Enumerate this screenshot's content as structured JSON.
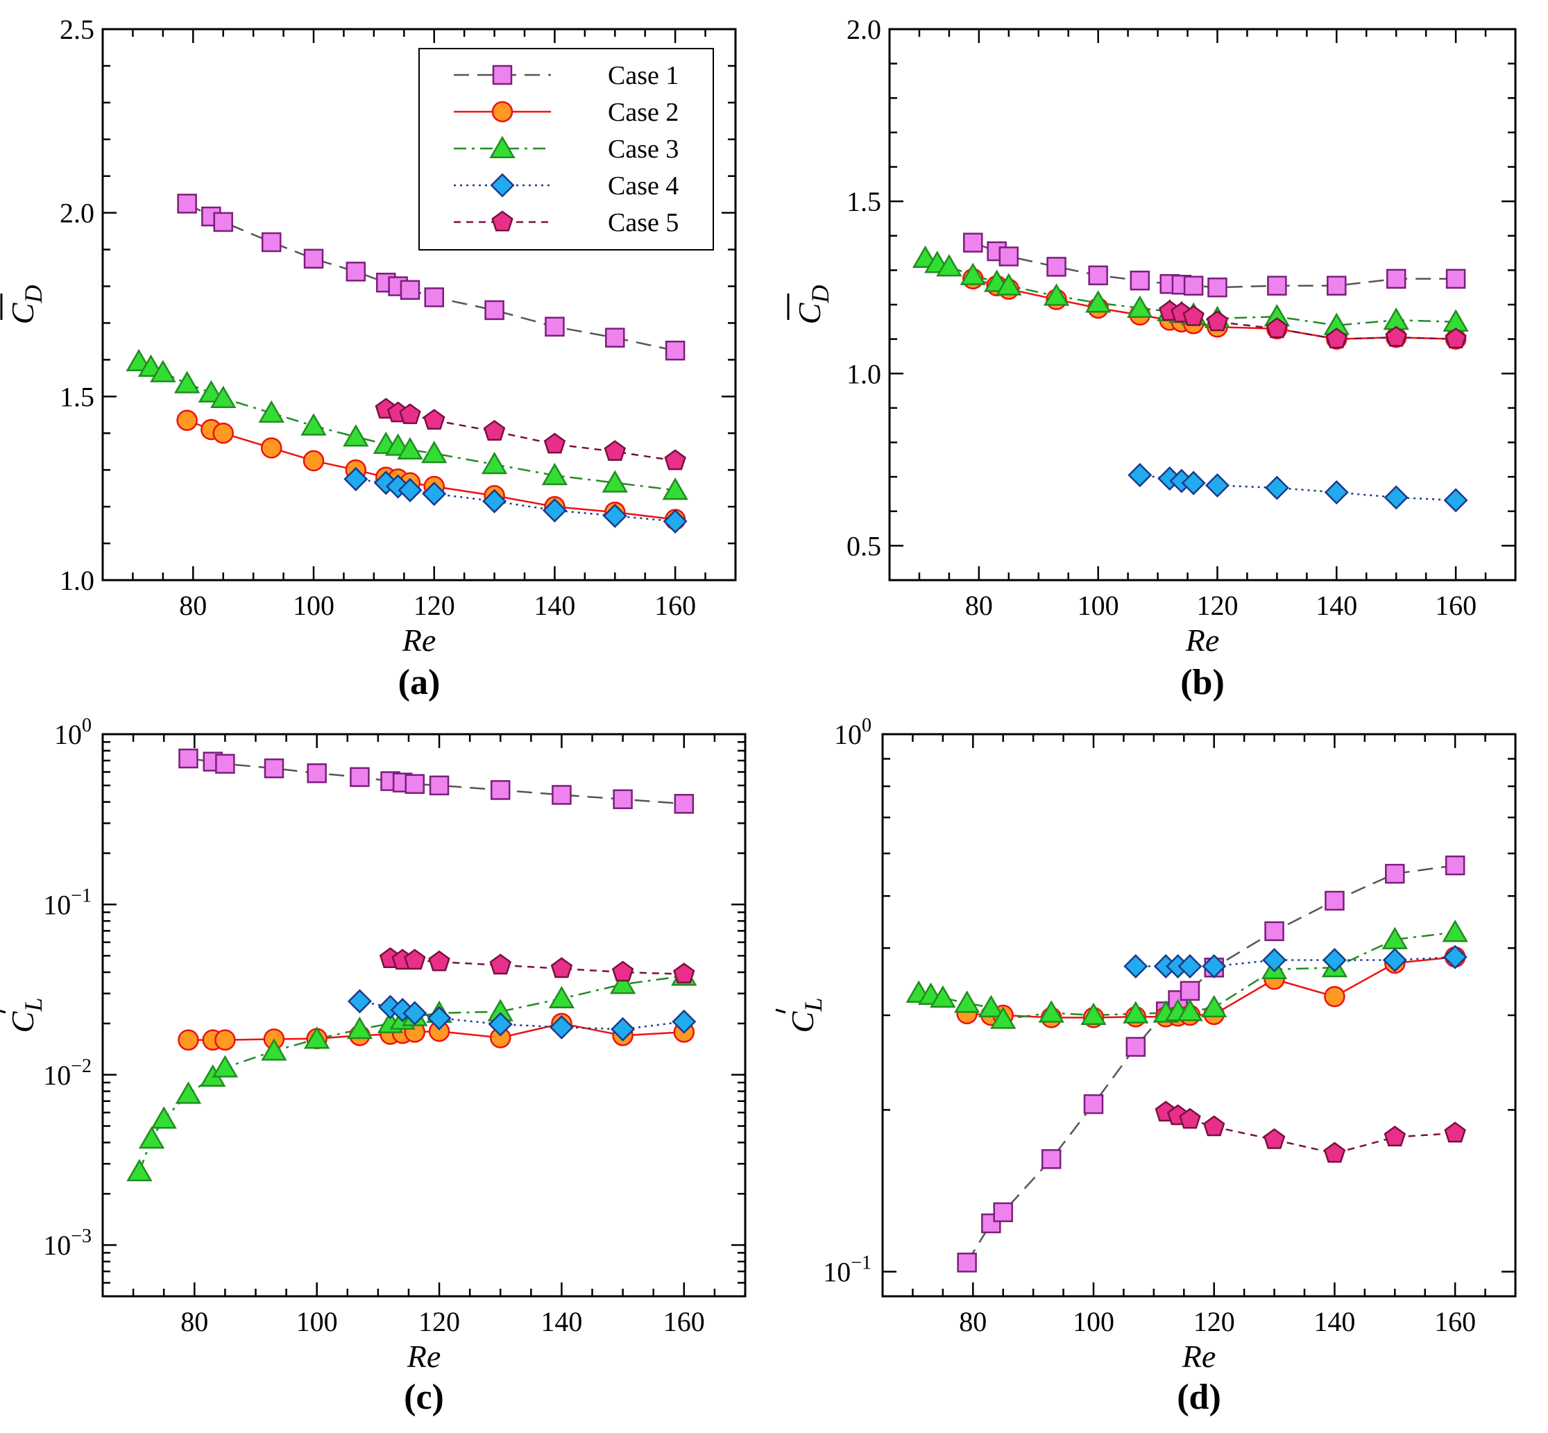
{
  "series_styles": {
    "case1": {
      "color": "#555555",
      "fill": "#ee82ee",
      "marker": "square",
      "dash": "22,12"
    },
    "case2": {
      "color": "#ee1111",
      "fill": "#ff9922",
      "marker": "circle",
      "dash": ""
    },
    "case3": {
      "color": "#228b22",
      "fill": "#33dd33",
      "marker": "triangle",
      "dash": "18,8,4,8"
    },
    "case4": {
      "color": "#1a3a8a",
      "fill": "#22aaee",
      "marker": "diamond",
      "dash": "3,6"
    },
    "case5": {
      "color": "#7a1040",
      "fill": "#e8308a",
      "marker": "pentagon",
      "dash": "10,8"
    }
  },
  "legend": {
    "entries": [
      {
        "key": "case1",
        "label": "Case 1"
      },
      {
        "key": "case2",
        "label": "Case 2"
      },
      {
        "key": "case3",
        "label": "Case 3"
      },
      {
        "key": "case4",
        "label": "Case 4"
      },
      {
        "key": "case5",
        "label": "Case 5"
      }
    ],
    "position": "top-right of panel (a)"
  },
  "chart_data": [
    {
      "type": "line",
      "panel_label": "(a)",
      "xlabel": "Re",
      "ylabel_main": "C",
      "ylabel_sub": "D",
      "ylabel_accent": "mean (overbar)",
      "yscale": "linear",
      "xlim": [
        65,
        170
      ],
      "ylim": [
        1.0,
        2.5
      ],
      "xticks": [
        80,
        100,
        120,
        140,
        160
      ],
      "xtick_labels": [
        "80",
        "100",
        "120",
        "140",
        "160"
      ],
      "yticks": [
        1.0,
        1.5,
        2.0,
        2.5
      ],
      "ytick_labels": [
        "1.0",
        "1.5",
        "2.0",
        "2.5"
      ],
      "series": [
        {
          "key": "case1",
          "name": "Case 1",
          "x": [
            79,
            83,
            85,
            93,
            100,
            107,
            112,
            114,
            116,
            120,
            130,
            140,
            150,
            160
          ],
          "y": [
            2.025,
            1.99,
            1.975,
            1.92,
            1.875,
            1.84,
            1.81,
            1.8,
            1.79,
            1.77,
            1.735,
            1.69,
            1.66,
            1.625
          ]
        },
        {
          "key": "case2",
          "name": "Case 2",
          "x": [
            79,
            83,
            85,
            93,
            100,
            107,
            112,
            114,
            116,
            120,
            130,
            140,
            150,
            160
          ],
          "y": [
            1.435,
            1.41,
            1.4,
            1.36,
            1.325,
            1.3,
            1.28,
            1.275,
            1.265,
            1.255,
            1.23,
            1.2,
            1.185,
            1.165
          ]
        },
        {
          "key": "case3",
          "name": "Case 3",
          "x": [
            71,
            73,
            75,
            79,
            83,
            85,
            93,
            100,
            107,
            112,
            114,
            116,
            120,
            130,
            140,
            150,
            160
          ],
          "y": [
            1.595,
            1.58,
            1.565,
            1.535,
            1.51,
            1.495,
            1.455,
            1.42,
            1.39,
            1.37,
            1.365,
            1.355,
            1.345,
            1.315,
            1.285,
            1.265,
            1.245
          ]
        },
        {
          "key": "case4",
          "name": "Case 4",
          "x": [
            107,
            112,
            114,
            116,
            120,
            130,
            140,
            150,
            160
          ],
          "y": [
            1.275,
            1.265,
            1.255,
            1.245,
            1.235,
            1.215,
            1.19,
            1.175,
            1.16
          ]
        },
        {
          "key": "case5",
          "name": "Case 5",
          "x": [
            112,
            114,
            116,
            120,
            130,
            140,
            150,
            160
          ],
          "y": [
            1.465,
            1.455,
            1.45,
            1.435,
            1.405,
            1.37,
            1.35,
            1.325
          ]
        }
      ]
    },
    {
      "type": "line",
      "panel_label": "(b)",
      "xlabel": "Re",
      "ylabel_main": "C",
      "ylabel_sub": "D",
      "ylabel_accent": "mean (overbar)",
      "yscale": "linear",
      "xlim": [
        65,
        170
      ],
      "ylim": [
        0.4,
        2.0
      ],
      "xticks": [
        80,
        100,
        120,
        140,
        160
      ],
      "xtick_labels": [
        "80",
        "100",
        "120",
        "140",
        "160"
      ],
      "yticks": [
        0.5,
        1.0,
        1.5,
        2.0
      ],
      "ytick_labels": [
        "0.5",
        "1.0",
        "1.5",
        "2.0"
      ],
      "series": [
        {
          "key": "case1",
          "name": "Case 1",
          "x": [
            79,
            83,
            85,
            93,
            100,
            107,
            112,
            114,
            116,
            120,
            130,
            140,
            150,
            160
          ],
          "y": [
            1.38,
            1.355,
            1.34,
            1.31,
            1.285,
            1.27,
            1.26,
            1.258,
            1.255,
            1.25,
            1.255,
            1.255,
            1.275,
            1.275
          ]
        },
        {
          "key": "case2",
          "name": "Case 2",
          "x": [
            79,
            83,
            85,
            93,
            100,
            107,
            112,
            114,
            116,
            120,
            130,
            140,
            150,
            160
          ],
          "y": [
            1.275,
            1.255,
            1.245,
            1.215,
            1.19,
            1.17,
            1.155,
            1.15,
            1.145,
            1.135,
            1.13,
            1.1,
            1.105,
            1.1
          ]
        },
        {
          "key": "case3",
          "name": "Case 3",
          "x": [
            71,
            73,
            75,
            79,
            83,
            85,
            93,
            100,
            107,
            112,
            114,
            116,
            120,
            130,
            140,
            150,
            160
          ],
          "y": [
            1.335,
            1.32,
            1.31,
            1.285,
            1.265,
            1.255,
            1.225,
            1.205,
            1.19,
            1.18,
            1.175,
            1.17,
            1.16,
            1.165,
            1.14,
            1.155,
            1.15
          ]
        },
        {
          "key": "case4",
          "name": "Case 4",
          "x": [
            107,
            112,
            114,
            116,
            120,
            130,
            140,
            150,
            160
          ],
          "y": [
            0.705,
            0.695,
            0.688,
            0.682,
            0.675,
            0.668,
            0.655,
            0.64,
            0.632
          ]
        },
        {
          "key": "case5",
          "name": "Case 5",
          "x": [
            112,
            114,
            116,
            120,
            130,
            140,
            150,
            160
          ],
          "y": [
            1.18,
            1.175,
            1.165,
            1.15,
            1.13,
            1.1,
            1.105,
            1.1
          ]
        }
      ]
    },
    {
      "type": "line",
      "panel_label": "(c)",
      "xlabel": "Re",
      "ylabel_main": "C",
      "ylabel_sub": "L",
      "ylabel_accent": "prime",
      "yscale": "log",
      "xlim": [
        65,
        170
      ],
      "ylim": [
        0.0005,
        1.0
      ],
      "xticks": [
        80,
        100,
        120,
        140,
        160
      ],
      "xtick_labels": [
        "80",
        "100",
        "120",
        "140",
        "160"
      ],
      "yticks": [
        0.001,
        0.01,
        0.1,
        1.0
      ],
      "ytick_labels": [
        [
          "10",
          "−3"
        ],
        [
          "10",
          "−2"
        ],
        [
          "10",
          "−1"
        ],
        [
          "10",
          "0"
        ]
      ],
      "series": [
        {
          "key": "case1",
          "name": "Case 1",
          "x": [
            79,
            83,
            85,
            93,
            100,
            107,
            112,
            114,
            116,
            120,
            130,
            140,
            150,
            160
          ],
          "y": [
            0.72,
            0.69,
            0.67,
            0.63,
            0.59,
            0.56,
            0.53,
            0.52,
            0.51,
            0.5,
            0.47,
            0.44,
            0.415,
            0.39
          ]
        },
        {
          "key": "case2",
          "name": "Case 2",
          "x": [
            79,
            83,
            85,
            93,
            100,
            107,
            112,
            114,
            116,
            120,
            130,
            140,
            150,
            160
          ],
          "y": [
            0.016,
            0.016,
            0.016,
            0.0162,
            0.0163,
            0.017,
            0.0173,
            0.0175,
            0.0178,
            0.018,
            0.0165,
            0.02,
            0.017,
            0.0178
          ]
        },
        {
          "key": "case3",
          "name": "Case 3",
          "x": [
            71,
            73,
            75,
            79,
            83,
            85,
            93,
            100,
            107,
            112,
            114,
            116,
            120,
            130,
            140,
            150,
            160
          ],
          "y": [
            0.0027,
            0.0042,
            0.0055,
            0.0077,
            0.0097,
            0.011,
            0.0138,
            0.0162,
            0.0185,
            0.02,
            0.021,
            0.022,
            0.023,
            0.0235,
            0.028,
            0.034,
            0.038
          ]
        },
        {
          "key": "case4",
          "name": "Case 4",
          "x": [
            107,
            112,
            114,
            116,
            120,
            130,
            140,
            150,
            160
          ],
          "y": [
            0.027,
            0.025,
            0.024,
            0.023,
            0.0215,
            0.0198,
            0.019,
            0.0185,
            0.0205
          ]
        },
        {
          "key": "case5",
          "name": "Case 5",
          "x": [
            112,
            114,
            116,
            120,
            130,
            140,
            150,
            160
          ],
          "y": [
            0.048,
            0.047,
            0.047,
            0.046,
            0.044,
            0.042,
            0.04,
            0.039
          ]
        }
      ]
    },
    {
      "type": "line",
      "panel_label": "(d)",
      "xlabel": "Re",
      "ylabel_main": "C",
      "ylabel_sub": "L",
      "ylabel_accent": "prime",
      "yscale": "log",
      "xlim": [
        65,
        170
      ],
      "ylim": [
        0.09,
        1.0
      ],
      "xticks": [
        80,
        100,
        120,
        140,
        160
      ],
      "xtick_labels": [
        "80",
        "100",
        "120",
        "140",
        "160"
      ],
      "yticks": [
        0.1,
        1.0
      ],
      "ytick_labels": [
        [
          "10",
          "−1"
        ],
        [
          "10",
          "0"
        ]
      ],
      "series": [
        {
          "key": "case1",
          "name": "Case 1",
          "x": [
            79,
            83,
            85,
            93,
            100,
            107,
            112,
            114,
            116,
            120,
            130,
            140,
            150,
            160
          ],
          "y": [
            0.104,
            0.123,
            0.129,
            0.162,
            0.205,
            0.262,
            0.305,
            0.32,
            0.333,
            0.368,
            0.43,
            0.49,
            0.55,
            0.57
          ]
        },
        {
          "key": "case2",
          "name": "Case 2",
          "x": [
            79,
            83,
            85,
            93,
            100,
            107,
            112,
            114,
            116,
            120,
            130,
            140,
            150,
            160
          ],
          "y": [
            0.302,
            0.3,
            0.3,
            0.297,
            0.297,
            0.298,
            0.298,
            0.299,
            0.3,
            0.301,
            0.35,
            0.325,
            0.375,
            0.385
          ]
        },
        {
          "key": "case3",
          "name": "Case 3",
          "x": [
            71,
            73,
            75,
            79,
            83,
            85,
            93,
            100,
            107,
            112,
            114,
            116,
            120,
            130,
            140,
            150,
            160
          ],
          "y": [
            0.33,
            0.327,
            0.323,
            0.316,
            0.31,
            0.295,
            0.303,
            0.3,
            0.302,
            0.303,
            0.305,
            0.305,
            0.31,
            0.365,
            0.368,
            0.415,
            0.428
          ]
        },
        {
          "key": "case4",
          "name": "Case 4",
          "x": [
            107,
            112,
            114,
            116,
            120,
            130,
            140,
            150,
            160
          ],
          "y": [
            0.37,
            0.37,
            0.37,
            0.37,
            0.37,
            0.38,
            0.38,
            0.38,
            0.385
          ]
        },
        {
          "key": "case5",
          "name": "Case 5",
          "x": [
            112,
            114,
            116,
            120,
            130,
            140,
            150,
            160
          ],
          "y": [
            0.198,
            0.195,
            0.192,
            0.186,
            0.176,
            0.166,
            0.178,
            0.181
          ]
        }
      ]
    }
  ]
}
